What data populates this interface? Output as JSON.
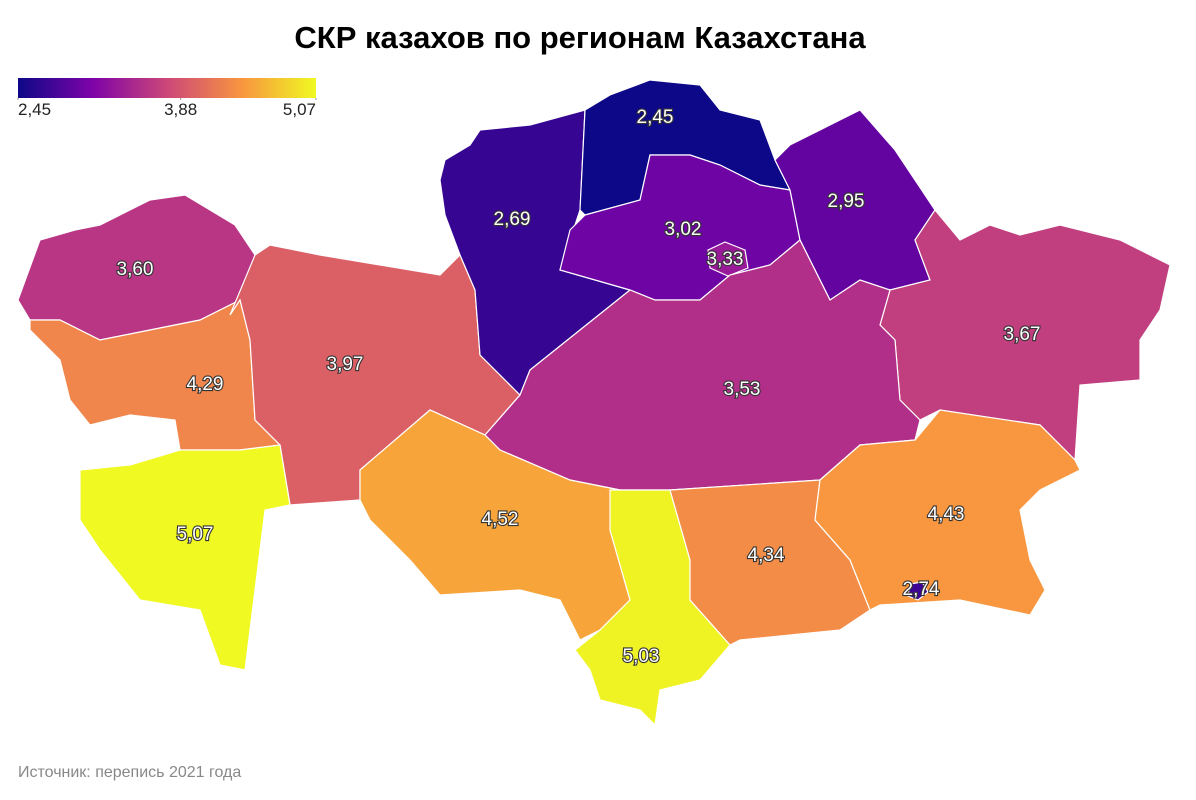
{
  "title": "СКР казахов по регионам Казахстана",
  "legend": {
    "colors": [
      "#0d0887",
      "#7e03a8",
      "#cc4778",
      "#f89540",
      "#f0f921"
    ],
    "ticks": [
      {
        "value": 2.45,
        "label": "2,45"
      },
      {
        "value": 3.88,
        "label": "3,88"
      },
      {
        "value": 5.07,
        "label": "5,07"
      }
    ]
  },
  "regions": [
    {
      "value": 3.6,
      "label": "3,60"
    },
    {
      "value": 4.29,
      "label": "4,29"
    },
    {
      "value": 3.97,
      "label": "3,97"
    },
    {
      "value": 5.07,
      "label": "5,07"
    },
    {
      "value": 2.69,
      "label": "2,69"
    },
    {
      "value": 2.45,
      "label": "2,45"
    },
    {
      "value": 3.02,
      "label": "3,02"
    },
    {
      "value": 3.33,
      "label": "3,33"
    },
    {
      "value": 2.95,
      "label": "2,95"
    },
    {
      "value": 3.67,
      "label": "3,67"
    },
    {
      "value": 3.53,
      "label": "3,53"
    },
    {
      "value": 4.52,
      "label": "4,52"
    },
    {
      "value": 5.03,
      "label": "5,03"
    },
    {
      "value": 4.34,
      "label": "4,34"
    },
    {
      "value": 4.43,
      "label": "4,43"
    },
    {
      "value": 2.74,
      "label": "2,74"
    }
  ],
  "source": "Источник: перепись 2021 года"
}
